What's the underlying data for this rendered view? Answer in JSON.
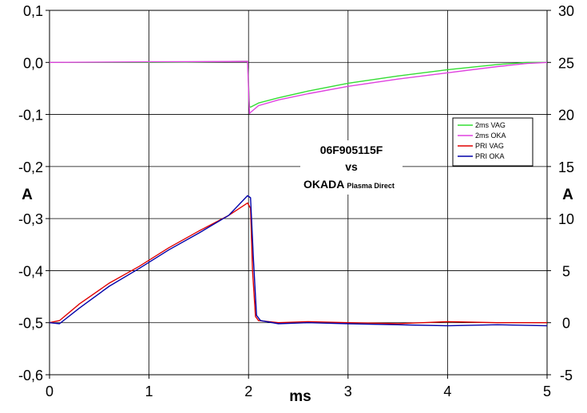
{
  "chart_data": {
    "type": "line",
    "xlabel": "ms",
    "ylabel_left": "A",
    "ylabel_right": "A",
    "xlim": [
      0,
      5
    ],
    "ylim_left": [
      -0.6,
      0.1
    ],
    "ylim_right": [
      -5,
      30
    ],
    "x_ticks": [
      "0",
      "1",
      "2",
      "3",
      "4",
      "5"
    ],
    "y_left_ticks": [
      "0,1",
      "0,0",
      "-0,1",
      "-0,2",
      "-0,3",
      "-0,4",
      "-0,5",
      "-0,6"
    ],
    "y_right_ticks": [
      "30",
      "25",
      "20",
      "15",
      "10",
      "5",
      "0",
      "-5"
    ],
    "grid": true,
    "legend_position": "right-center",
    "annotation": {
      "line1": "06F905115F",
      "line2": "vs",
      "line3_main": "OKADA",
      "line3_sub": "Plasma Direct"
    },
    "series": [
      {
        "name": "2ms VAG",
        "axis": "left",
        "color": "#33dd33",
        "x": [
          0,
          1.0,
          1.99,
          2.0,
          2.01,
          2.02,
          2.1,
          2.3,
          2.6,
          3.0,
          3.5,
          4.0,
          4.5,
          4.8,
          5.0
        ],
        "y": [
          0.0,
          0.0,
          0.002,
          -0.04,
          -0.085,
          -0.086,
          -0.078,
          -0.068,
          -0.055,
          -0.04,
          -0.026,
          -0.014,
          -0.004,
          0.0,
          0.0
        ]
      },
      {
        "name": "2ms OKA",
        "axis": "left",
        "color": "#e040e0",
        "x": [
          0,
          1.0,
          1.99,
          2.0,
          2.01,
          2.02,
          2.1,
          2.3,
          2.6,
          3.0,
          3.5,
          4.0,
          4.5,
          4.8,
          5.0
        ],
        "y": [
          0.0,
          0.001,
          0.002,
          -0.05,
          -0.098,
          -0.096,
          -0.083,
          -0.072,
          -0.06,
          -0.046,
          -0.032,
          -0.02,
          -0.008,
          -0.002,
          0.0
        ]
      },
      {
        "name": "PRI VAG",
        "axis": "right",
        "color": "#e00000",
        "x": [
          0,
          0.1,
          0.3,
          0.6,
          0.9,
          1.2,
          1.5,
          1.8,
          1.99,
          2.02,
          2.04,
          2.07,
          2.1,
          2.3,
          2.6,
          3.0,
          3.5,
          4.0,
          4.5,
          5.0
        ],
        "y": [
          0,
          0.2,
          1.8,
          3.8,
          5.4,
          7.2,
          8.8,
          10.3,
          11.5,
          11.0,
          5.0,
          0.6,
          0.2,
          0.0,
          0.1,
          0.0,
          -0.1,
          0.1,
          0.0,
          0.0
        ]
      },
      {
        "name": "PRI OKA",
        "axis": "right",
        "color": "#0000aa",
        "x": [
          0,
          0.1,
          0.3,
          0.6,
          0.9,
          1.2,
          1.5,
          1.8,
          1.99,
          2.02,
          2.05,
          2.08,
          2.12,
          2.3,
          2.6,
          3.0,
          3.5,
          4.0,
          4.5,
          5.0
        ],
        "y": [
          0,
          -0.1,
          1.4,
          3.5,
          5.2,
          7.0,
          8.6,
          10.3,
          12.2,
          12.0,
          6.0,
          0.7,
          0.2,
          -0.1,
          0.0,
          -0.1,
          -0.2,
          -0.3,
          -0.2,
          -0.3
        ]
      }
    ]
  }
}
